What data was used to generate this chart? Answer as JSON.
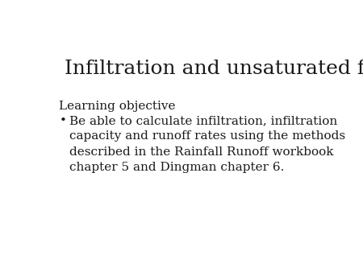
{
  "title": "Infiltration and unsaturated flow",
  "title_fontsize": 18,
  "title_color": "#1a1a1a",
  "background_color": "#ffffff",
  "section_label": "Learning objective",
  "section_fontsize": 11,
  "bullet_char": "•",
  "bullet_text": "Be able to calculate infiltration, infiltration\ncapacity and runoff rates using the methods\ndescribed in the Rainfall Runoff workbook\nchapter 5 and Dingman chapter 6.",
  "bullet_fontsize": 11,
  "text_color": "#1a1a1a"
}
